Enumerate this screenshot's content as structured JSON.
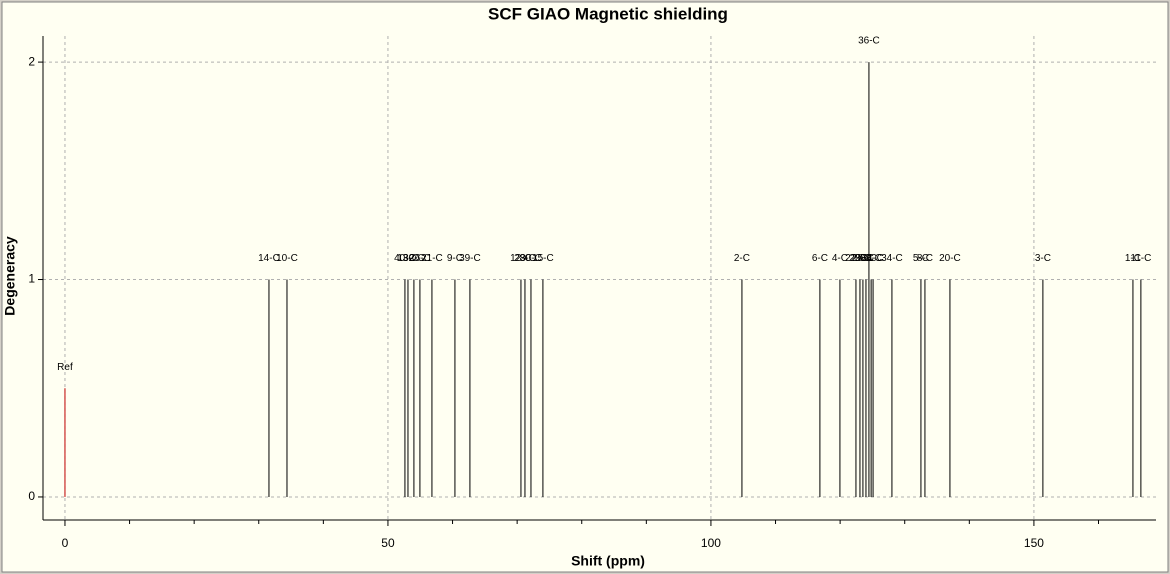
{
  "chart_data": {
    "type": "stick",
    "title": "SCF GIAO Magnetic shielding",
    "xlabel": "Shift (ppm)",
    "ylabel": "Degeneracy",
    "x": [
      31.58,
      34.37,
      52.63,
      53.1,
      54.02,
      54.95,
      56.81,
      60.37,
      62.69,
      70.59,
      71.21,
      72.14,
      73.99,
      104.8,
      116.87,
      119.97,
      122.45,
      123.07,
      123.53,
      124.0,
      124.46,
      124.8,
      125.1,
      128.02,
      132.51,
      133.13,
      137.0,
      151.39,
      165.33,
      166.56
    ],
    "values": [
      1,
      1,
      1,
      1,
      1,
      1,
      1,
      1,
      1,
      1,
      1,
      1,
      1,
      1,
      1,
      1,
      1,
      1,
      1,
      1,
      2,
      1,
      1,
      1,
      1,
      1,
      1,
      1,
      1,
      1
    ],
    "labels": [
      "14-C",
      "10-C",
      "40-C",
      "13-C",
      "32-C",
      "26-C",
      "21-C",
      "9-C",
      "39-C",
      "12-C",
      "28-C",
      "30-C",
      "15-C",
      "2-C",
      "6-C",
      "4-C",
      "22-C",
      "29-C",
      "25-C",
      "38-C",
      "36-C",
      "33-C",
      "31-C",
      "34-C",
      "5-C",
      "8-C",
      "20-C",
      "3-C",
      "1-C",
      "11-C"
    ],
    "color": "#000000",
    "reference": {
      "label": "Ref",
      "x": 0,
      "value": 0.5,
      "color": "#c00000"
    },
    "xlim": [
      -3.4,
      168.9
    ],
    "ylim": [
      -0.106,
      2.12
    ],
    "xticks": [
      0,
      50,
      100,
      150
    ],
    "xminorticks": [
      10,
      20,
      30,
      40,
      60,
      70,
      80,
      90,
      110,
      120,
      130,
      140,
      160
    ],
    "yticks": [
      0,
      1,
      2
    ],
    "grid": true
  }
}
